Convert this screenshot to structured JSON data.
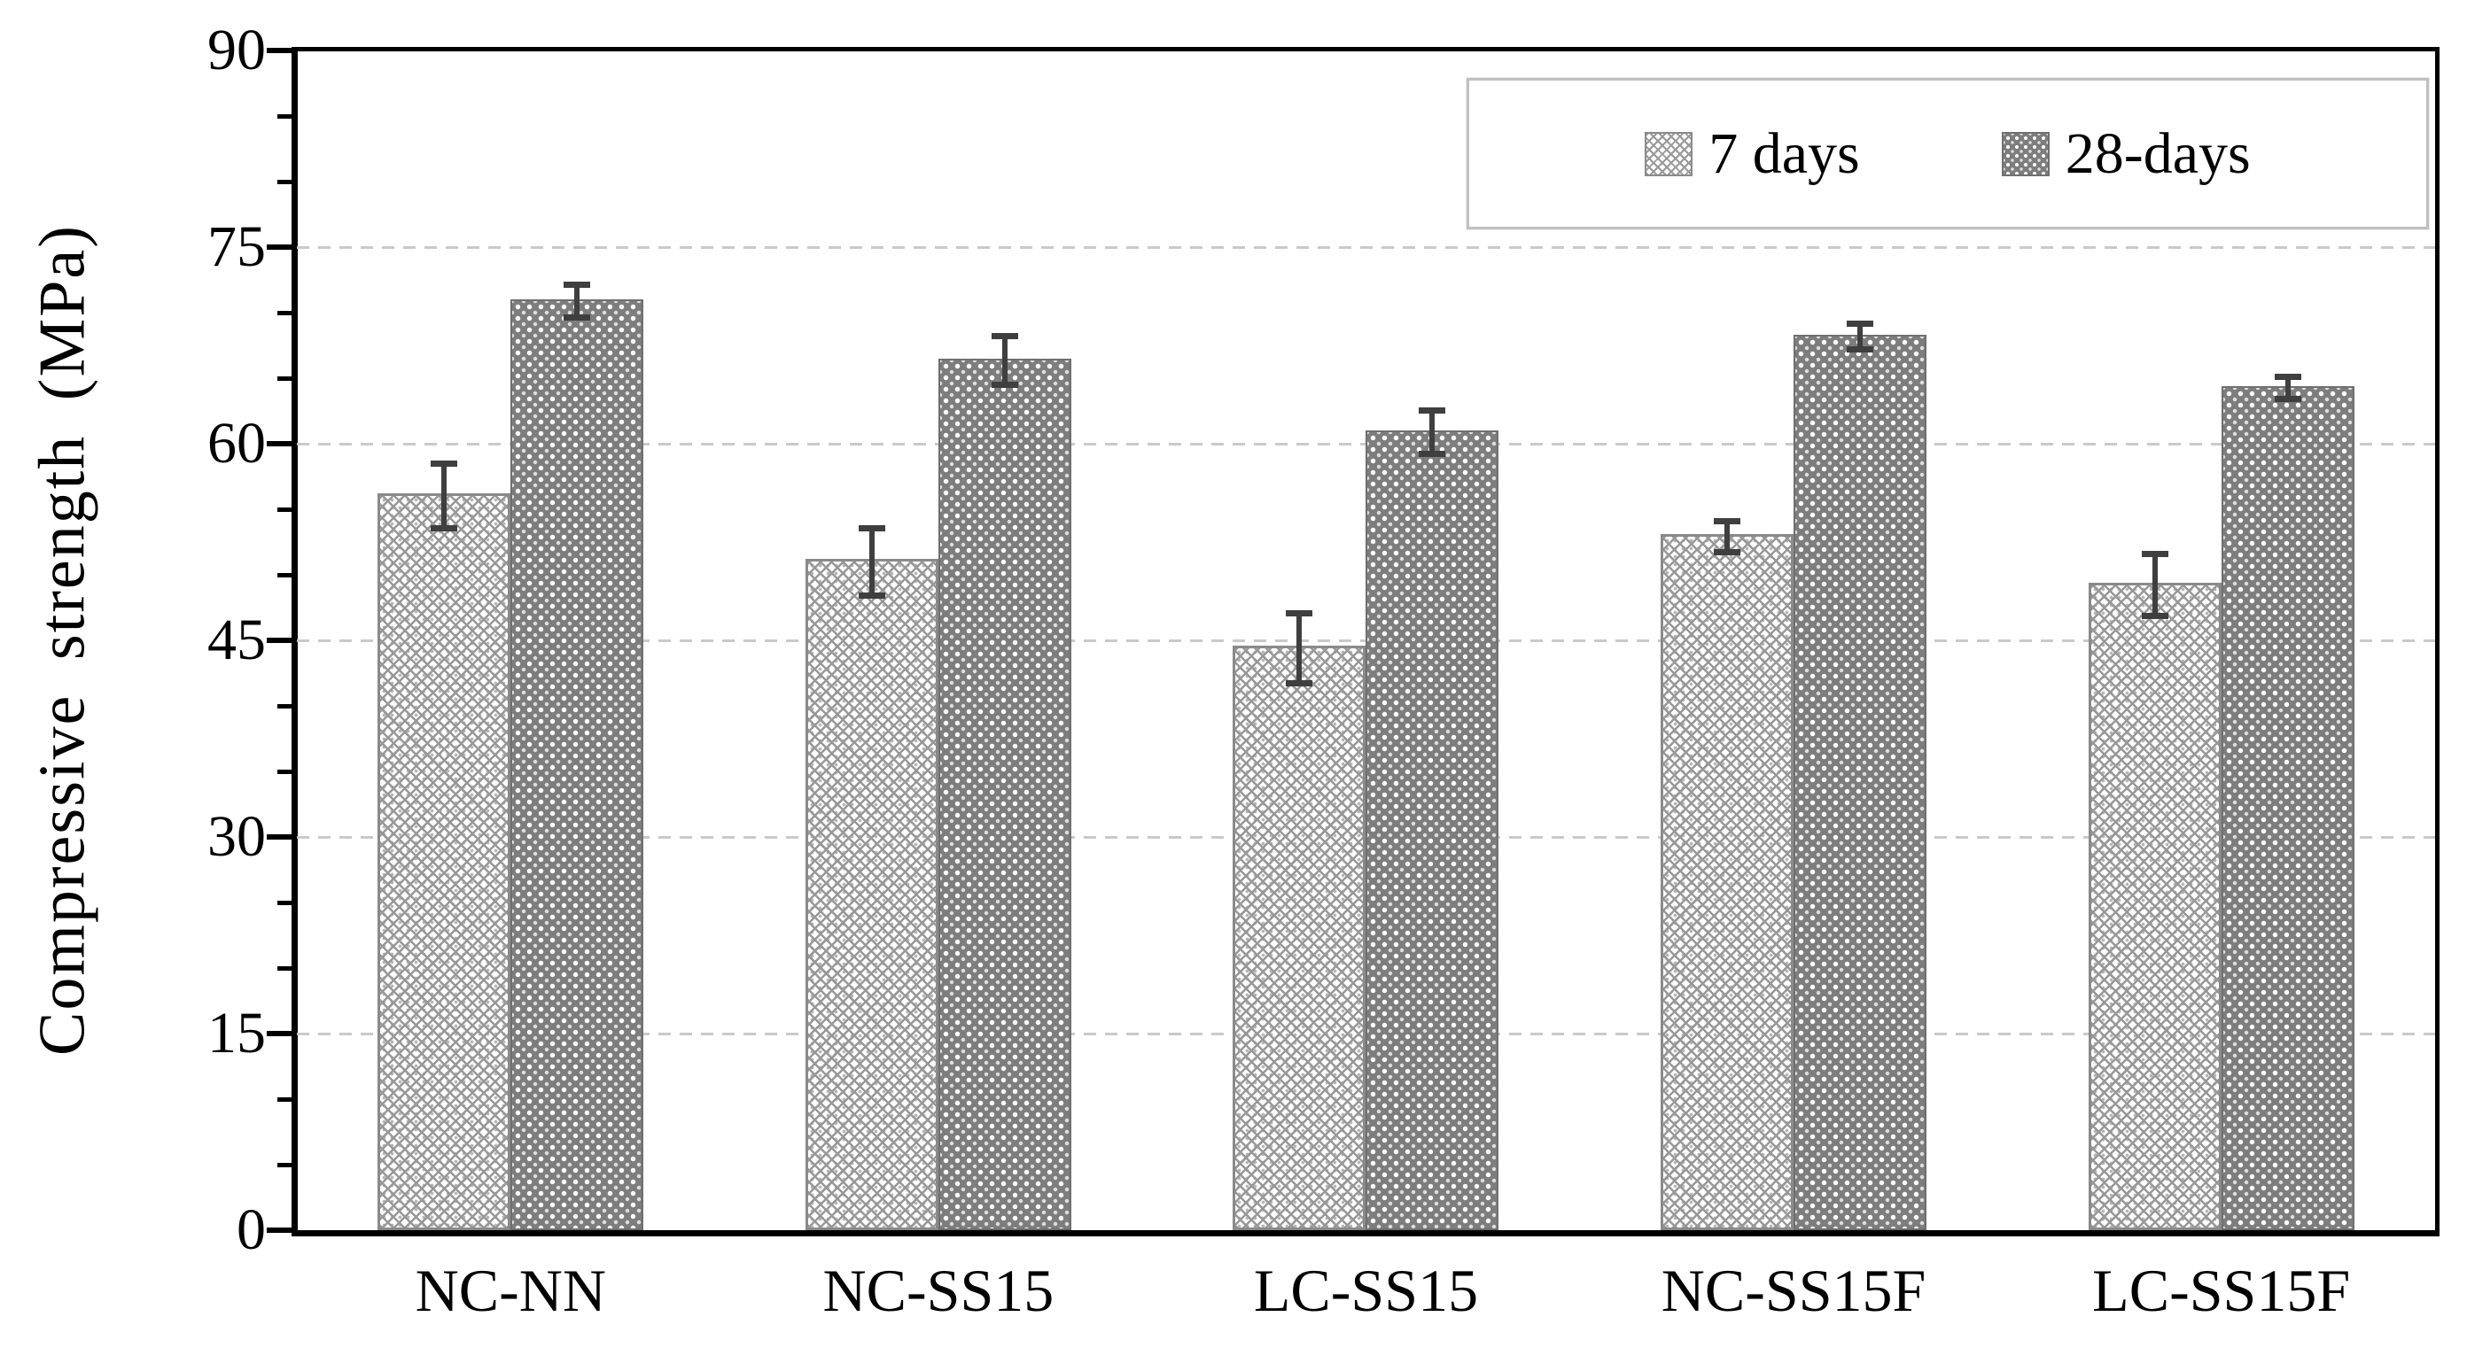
{
  "chart_data": {
    "type": "bar",
    "title": "",
    "xlabel": "",
    "ylabel": "Compressive strength (MPa)",
    "ylim": [
      0,
      90
    ],
    "y_major_tick_step": 15,
    "y_minor_tick_step": 5,
    "y_tick_labels": [
      "0",
      "15",
      "30",
      "45",
      "60",
      "75",
      "90"
    ],
    "grid": "horizontal dashed gridlines at major ticks",
    "legend_position": "top-right inside plot",
    "categories": [
      "NC-NN",
      "NC-SS15",
      "LC-SS15",
      "NC-SS15F",
      "LC-SS15F"
    ],
    "series": [
      {
        "name": "7 days",
        "pattern": "white-crosshatch",
        "values": [
          56.2,
          51.2,
          44.6,
          53.1,
          49.4
        ],
        "errors": [
          2.7,
          2.8,
          2.9,
          1.4,
          2.6
        ]
      },
      {
        "name": "28-days",
        "pattern": "gray-dots",
        "values": [
          71.0,
          66.5,
          61.0,
          68.3,
          64.4
        ],
        "errors": [
          1.5,
          2.1,
          1.9,
          1.2,
          1.1
        ]
      }
    ]
  },
  "legend": {
    "items": [
      {
        "label": "7 days"
      },
      {
        "label": "28-days"
      }
    ]
  },
  "colors": {
    "axis": "#000000",
    "grid": "#c9c9c9",
    "bar7_hatch": "#989898",
    "bar28_fill": "#7d7d7d",
    "error_bar": "#3f3f3f",
    "legend_border": "#c0c0c0",
    "text": "#000000"
  }
}
